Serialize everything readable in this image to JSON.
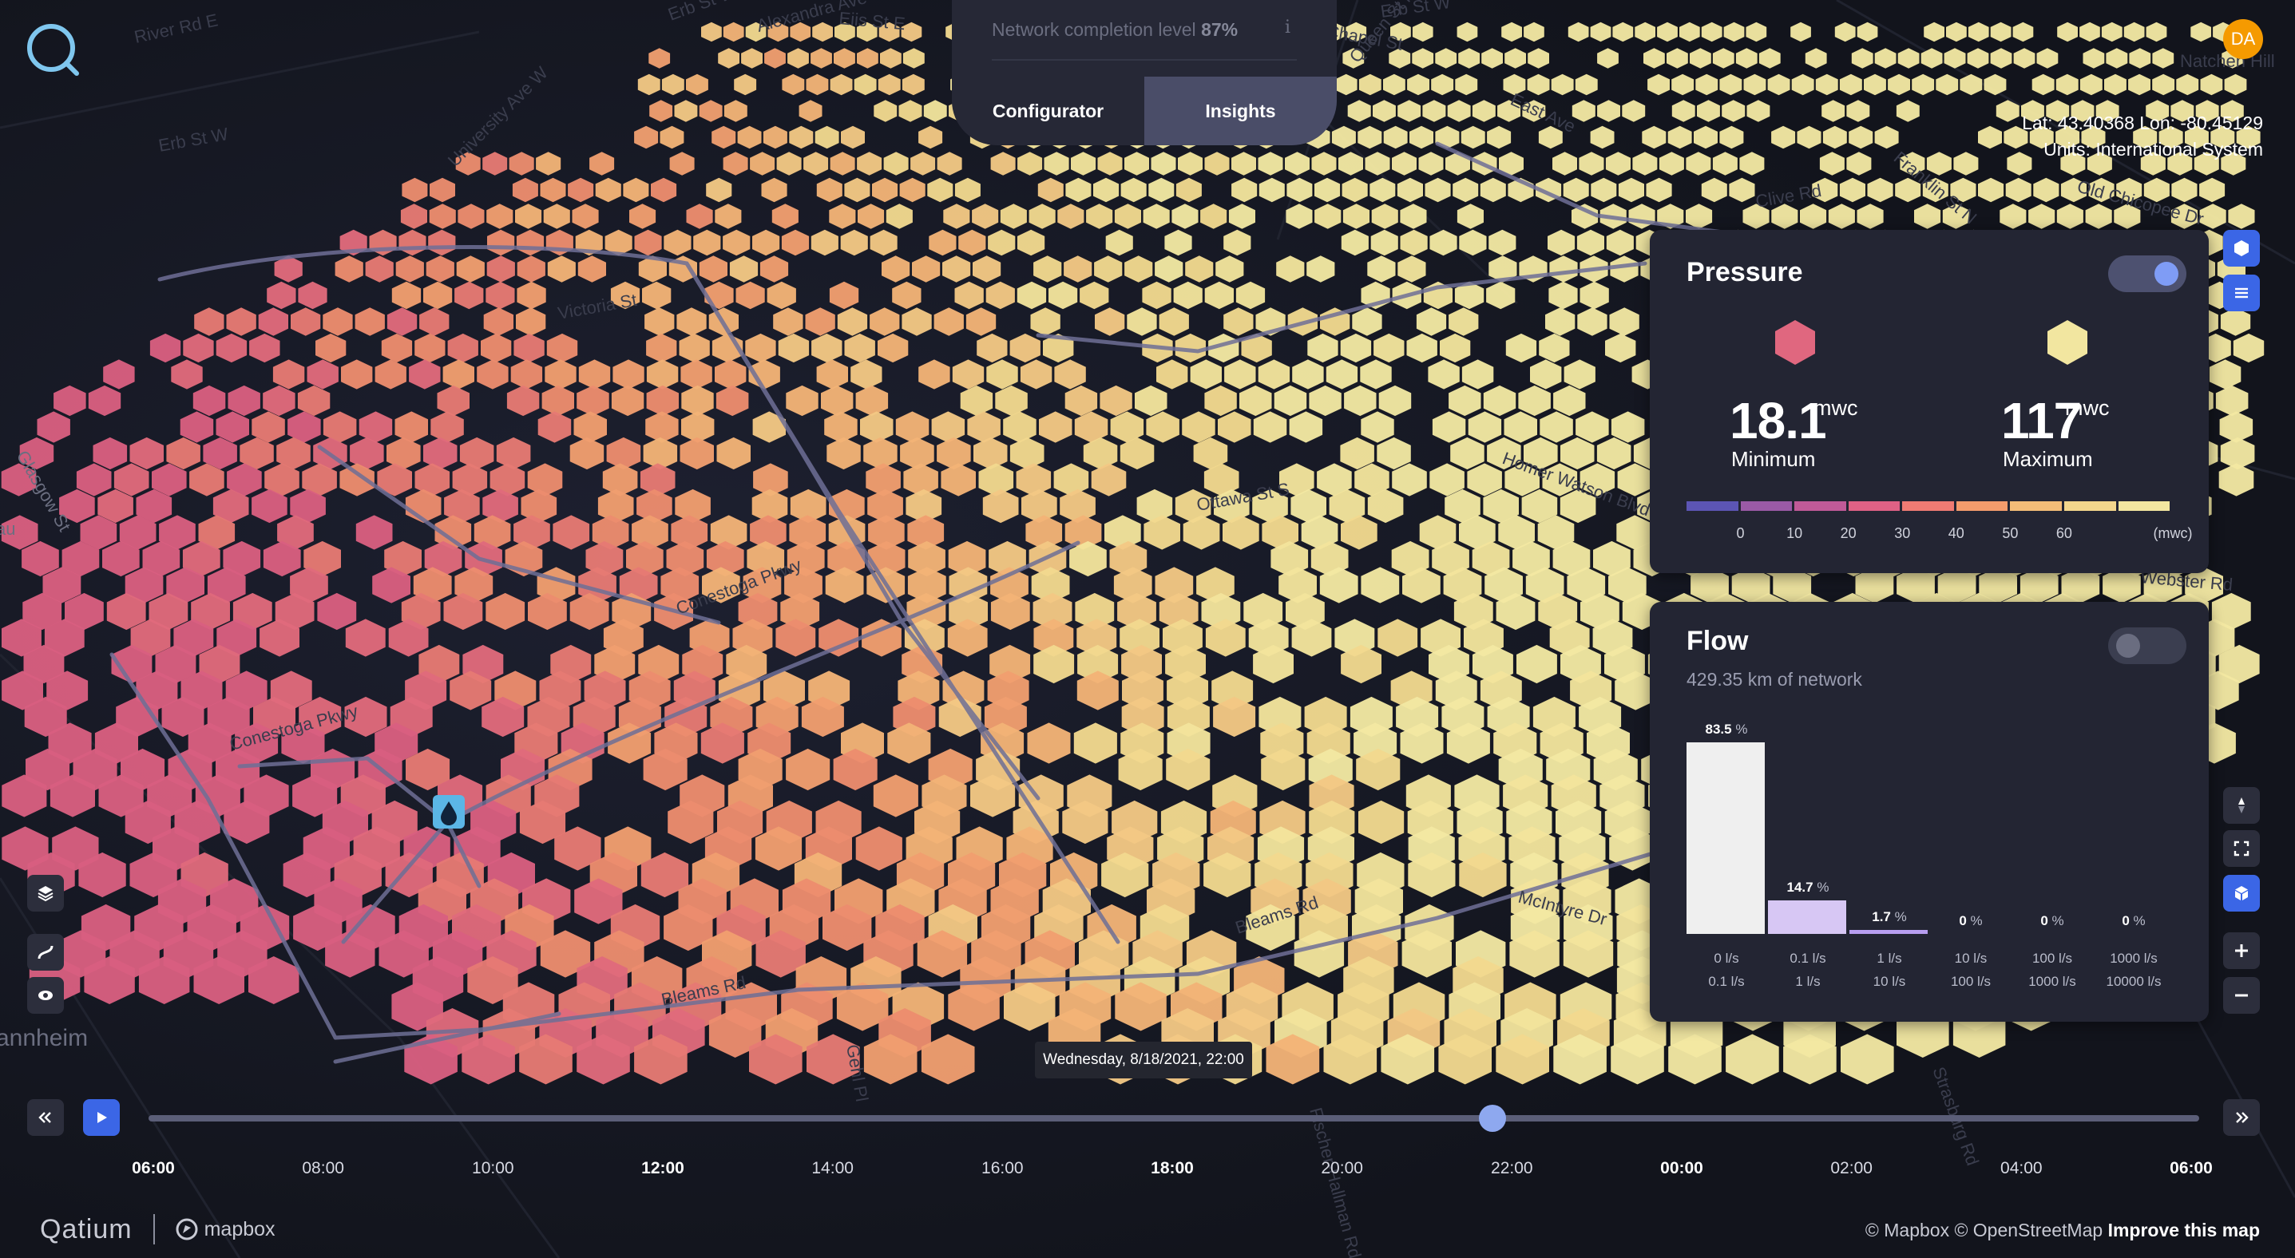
{
  "header": {
    "completion_label": "Network completion level",
    "completion_value": "87%",
    "info_icon": "info-icon",
    "tabs": [
      {
        "label": "Configurator",
        "active": false
      },
      {
        "label": "Insights",
        "active": true
      }
    ],
    "avatar_initials": "DA",
    "coordinates": "Lat: 43.40368 Lon: -80.45129",
    "units": "Units: International System"
  },
  "map_labels": [
    "Erb St W",
    "Alexandra Ave",
    "Eiis St E",
    "Erb St W",
    "River Rd E",
    "Erb St W",
    "University Ave W",
    "Victoria St",
    "Conestoga Pkwy",
    "Conestoga Pkwy",
    "Homer Watson Blvd",
    "Ottawa St S",
    "Bleams Rd",
    "Bleams Rd",
    "Fischer-Hallman Rd",
    "Strasburg Rd",
    "Gehl Pl",
    "Webster Rd",
    "Franklin St N",
    "Natchen Hill",
    "Chapel St",
    "Queen St N",
    "East Ave",
    "Clive Rd",
    "Old Chicopee Dr",
    "McIntyre Dr",
    "annheim",
    "au",
    "Glasgow St"
  ],
  "pressure": {
    "title": "Pressure",
    "enabled": true,
    "min_value": "18.1",
    "min_unit": "mwc",
    "min_label": "Minimum",
    "min_color": "#e0677f",
    "max_value": "117",
    "max_unit": "mwc",
    "max_label": "Maximum",
    "max_color": "#f2e6a0",
    "scale_colors": [
      "#5c55b4",
      "#9a5aa6",
      "#c05a98",
      "#df6185",
      "#ef7b73",
      "#f49c6c",
      "#f4bd78",
      "#f3d68c",
      "#f2e6a0"
    ],
    "scale_ticks": [
      "0",
      "10",
      "20",
      "30",
      "40",
      "50",
      "60"
    ],
    "scale_unit": "(mwc)"
  },
  "flow": {
    "title": "Flow",
    "enabled": false,
    "subtitle": "429.35 km of network",
    "bins": [
      {
        "value": "83.5",
        "pct": 83.5,
        "line1": "0 l/s",
        "line2": "0.1 l/s",
        "color": "#efefef"
      },
      {
        "value": "14.7",
        "pct": 14.7,
        "line1": "0.1 l/s",
        "line2": "1 l/s",
        "color": "#d7c7f4"
      },
      {
        "value": "1.7",
        "pct": 1.7,
        "line1": "1 l/s",
        "line2": "10 l/s",
        "color": "#b79ef0"
      },
      {
        "value": "0",
        "pct": 0,
        "line1": "10 l/s",
        "line2": "100 l/s",
        "color": "#9c80e6"
      },
      {
        "value": "0",
        "pct": 0,
        "line1": "100 l/s",
        "line2": "1000 l/s",
        "color": "#8366db"
      },
      {
        "value": "0",
        "pct": 0,
        "line1": "1000 l/s",
        "line2": "10000 l/s",
        "color": "#6b50cf"
      }
    ],
    "pct_symbol": "%"
  },
  "timeline": {
    "tooltip": "Wednesday, 8/18/2021, 22:00",
    "position_fraction": 0.657,
    "labels": [
      {
        "t": "06:00",
        "bold": true
      },
      {
        "t": "08:00",
        "bold": false
      },
      {
        "t": "10:00",
        "bold": false
      },
      {
        "t": "12:00",
        "bold": true
      },
      {
        "t": "14:00",
        "bold": false
      },
      {
        "t": "16:00",
        "bold": false
      },
      {
        "t": "18:00",
        "bold": true
      },
      {
        "t": "20:00",
        "bold": false
      },
      {
        "t": "22:00",
        "bold": false
      },
      {
        "t": "00:00",
        "bold": true
      },
      {
        "t": "02:00",
        "bold": false
      },
      {
        "t": "04:00",
        "bold": false
      },
      {
        "t": "06:00",
        "bold": true
      }
    ]
  },
  "footer": {
    "brand": "Qatium",
    "mapbox": "mapbox",
    "attribution": "© Mapbox © OpenStreetMap",
    "improve": "Improve this map"
  },
  "icons": {
    "logo": "qatium-logo-icon",
    "rewind": "rewind-icon",
    "play": "play-icon",
    "forward": "fast-forward-icon",
    "layers": "layers-icon",
    "pipe": "pipe-icon",
    "eye": "eye-icon",
    "hexagon": "hexagon-icon",
    "list": "legend-icon",
    "compass": "compass-icon",
    "fullscreen": "fullscreen-icon",
    "cube": "3d-cube-icon",
    "zoom_in": "zoom-in-icon",
    "zoom_out": "zoom-out-icon",
    "reservoir": "water-drop-icon"
  }
}
